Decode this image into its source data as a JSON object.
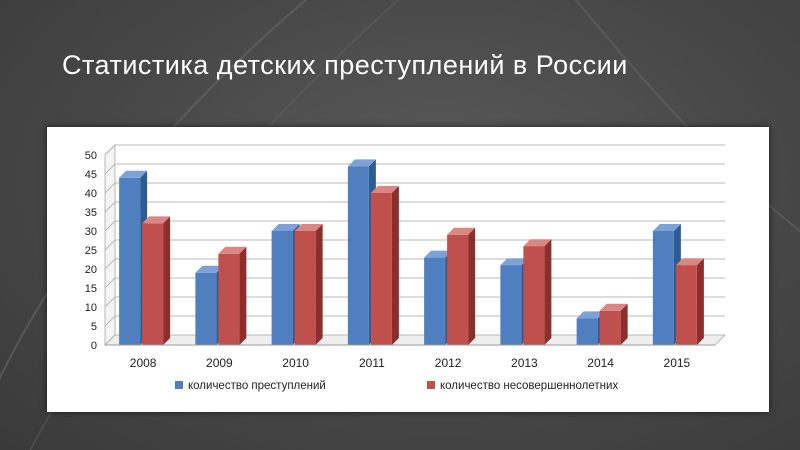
{
  "slide": {
    "title": "Статистика детских преступлений в России"
  },
  "colors": {
    "series1_front": "#4F7FBF",
    "series1_side": "#2D5B94",
    "series1_top": "#7EA2D6",
    "series2_front": "#C0504D",
    "series2_side": "#8C2F2C",
    "series2_top": "#D98784",
    "grid": "#B8B8B8"
  },
  "chart_data": {
    "type": "bar",
    "categories": [
      "2008",
      "2009",
      "2010",
      "2011",
      "2012",
      "2013",
      "2014",
      "2015"
    ],
    "series": [
      {
        "name": "количество преступлений",
        "values": [
          44,
          19,
          30,
          47,
          23,
          21,
          7,
          30
        ]
      },
      {
        "name": "количество несовершеннолетних",
        "values": [
          32,
          24,
          30,
          40,
          29,
          26,
          9,
          21
        ]
      }
    ],
    "yticks": [
      "0",
      "5",
      "10",
      "15",
      "20",
      "25",
      "30",
      "35",
      "40",
      "45",
      "50"
    ],
    "ylim": [
      0,
      50
    ],
    "grid": true,
    "legend_position": "bottom",
    "style": "3d-clustered-column"
  }
}
